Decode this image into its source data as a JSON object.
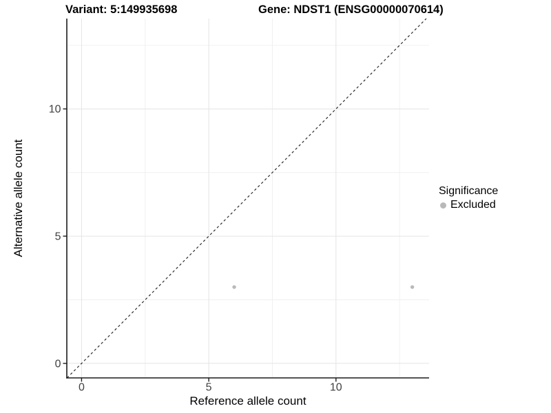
{
  "titles": {
    "variant": "Variant: 5:149935698",
    "gene": "Gene: NDST1 (ENSG00000070614)"
  },
  "legend": {
    "title": "Significance",
    "items": [
      {
        "label": "Excluded",
        "color": "#b9b9b9"
      }
    ]
  },
  "chart_data": {
    "type": "scatter",
    "title": "Variant: 5:149935698 | Gene: NDST1 (ENSG00000070614)",
    "xlabel": "Reference allele count",
    "ylabel": "Alternative allele count",
    "xlim": [
      -0.58,
      13.66
    ],
    "ylim": [
      -0.57,
      13.55
    ],
    "x_ticks": [
      {
        "value": 0,
        "label": "0"
      },
      {
        "value": 5,
        "label": "5"
      },
      {
        "value": 10,
        "label": "10"
      }
    ],
    "y_ticks": [
      {
        "value": 0,
        "label": "0"
      },
      {
        "value": 5,
        "label": "5"
      },
      {
        "value": 10,
        "label": "10"
      }
    ],
    "x_minor_gridlines": [
      2.5,
      7.5,
      12.5
    ],
    "y_minor_gridlines": [
      2.5,
      7.5,
      12.5
    ],
    "grid": true,
    "legend_position": "right",
    "series": [
      {
        "name": "Excluded",
        "color": "#b9b9b9",
        "point_radius": 2.7,
        "points": [
          {
            "x": 6,
            "y": 3
          },
          {
            "x": 13,
            "y": 3
          }
        ]
      }
    ],
    "reference_line": {
      "type": "identity y=x",
      "style": "dashed",
      "color": "#1a1a1a",
      "from": -0.57,
      "to": 13.55
    },
    "colors": {
      "grid_major": "#e4e4e4",
      "grid_minor": "#f0f0f0",
      "axis": "#1a1a1a",
      "tick_label": "#404040"
    }
  }
}
